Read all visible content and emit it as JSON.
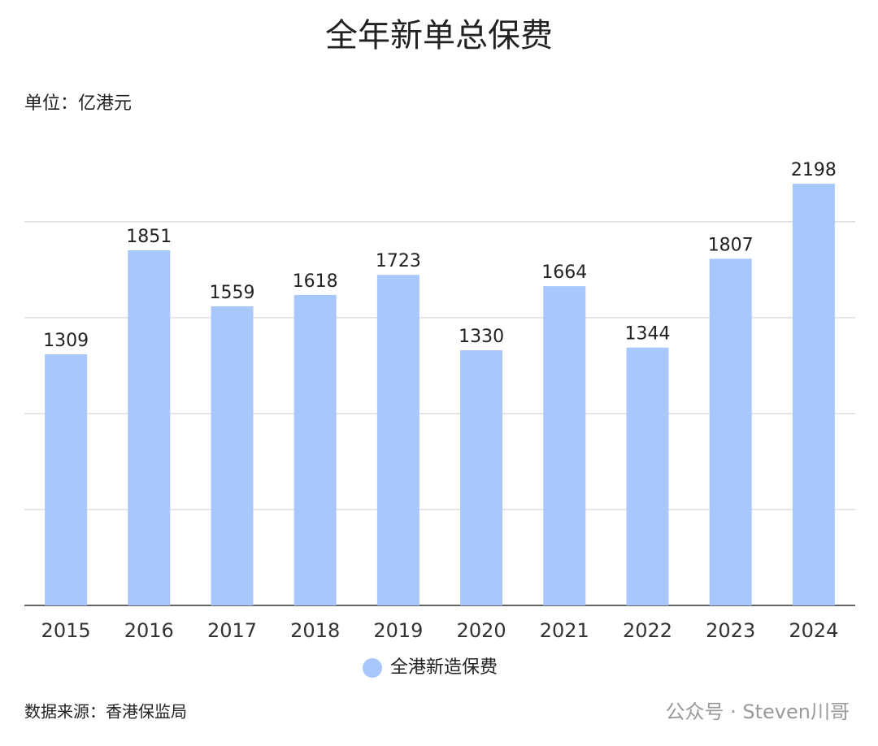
{
  "chart_data": {
    "type": "bar",
    "title": "全年新单总保费",
    "unit_label": "单位：亿港元",
    "categories": [
      "2015",
      "2016",
      "2017",
      "2018",
      "2019",
      "2020",
      "2021",
      "2022",
      "2023",
      "2024"
    ],
    "series": [
      {
        "name": "全港新造保费",
        "color": "#a8c8fc",
        "values": [
          1309,
          1851,
          1559,
          1618,
          1723,
          1330,
          1664,
          1344,
          1807,
          2198
        ]
      }
    ],
    "ylim": [
      0,
      2200
    ],
    "yticks": [
      0,
      500,
      1000,
      1500,
      2000
    ],
    "grid": true,
    "source": "数据来源：香港保监局",
    "watermark": "公众号 · Steven川哥"
  }
}
